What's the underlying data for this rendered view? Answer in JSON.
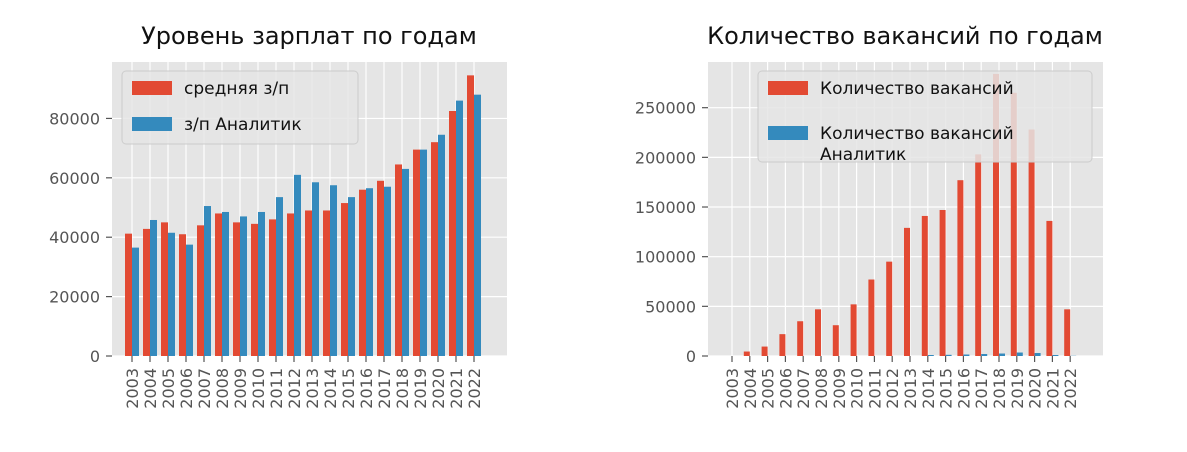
{
  "chart_data": [
    {
      "type": "bar",
      "title": "Уровень зарплат по годам",
      "categories": [
        "2003",
        "2004",
        "2005",
        "2006",
        "2007",
        "2008",
        "2009",
        "2010",
        "2011",
        "2012",
        "2013",
        "2014",
        "2015",
        "2016",
        "2017",
        "2018",
        "2019",
        "2020",
        "2021",
        "2022"
      ],
      "series": [
        {
          "name": "средняя з/п",
          "color": "#E24A33",
          "values": [
            41200,
            42800,
            45000,
            41000,
            44000,
            48000,
            45000,
            44500,
            46000,
            48000,
            49000,
            49000,
            51500,
            56000,
            59000,
            64500,
            69500,
            72000,
            82500,
            94500
          ]
        },
        {
          "name": "з/п Аналитик",
          "color": "#348ABD",
          "values": [
            36500,
            45800,
            41500,
            37500,
            50500,
            48500,
            47000,
            48500,
            53500,
            61000,
            58500,
            57500,
            53500,
            56500,
            57000,
            63000,
            69500,
            74500,
            86000,
            88000
          ]
        }
      ],
      "yticks": [
        0,
        20000,
        40000,
        60000,
        80000
      ],
      "ylim": [
        0,
        99000
      ],
      "grid": true,
      "legend": "top-left"
    },
    {
      "type": "bar",
      "title": "Количество вакансий по годам",
      "categories": [
        "2003",
        "2004",
        "2005",
        "2006",
        "2007",
        "2008",
        "2009",
        "2010",
        "2011",
        "2012",
        "2013",
        "2014",
        "2015",
        "2016",
        "2017",
        "2018",
        "2019",
        "2020",
        "2021",
        "2022"
      ],
      "series": [
        {
          "name": "Количество вакансий",
          "color": "#E24A33",
          "values": [
            0,
            4500,
            9500,
            22000,
            35000,
            47000,
            31000,
            52000,
            77000,
            95000,
            129000,
            141000,
            147000,
            177000,
            203000,
            284000,
            265000,
            228000,
            136000,
            47000
          ]
        },
        {
          "name": "Количество вакансий Аналитик",
          "name_lines": [
            "Количество вакансий",
            "Аналитик"
          ],
          "color": "#348ABD",
          "values": [
            0,
            0,
            0,
            0,
            0,
            0,
            0,
            0,
            0,
            0,
            0,
            1000,
            1200,
            1500,
            2000,
            2500,
            3500,
            3000,
            1000,
            200
          ]
        }
      ],
      "yticks": [
        0,
        50000,
        100000,
        150000,
        200000,
        250000
      ],
      "ylim": [
        0,
        296000
      ],
      "grid": true,
      "legend": "top-right"
    }
  ]
}
